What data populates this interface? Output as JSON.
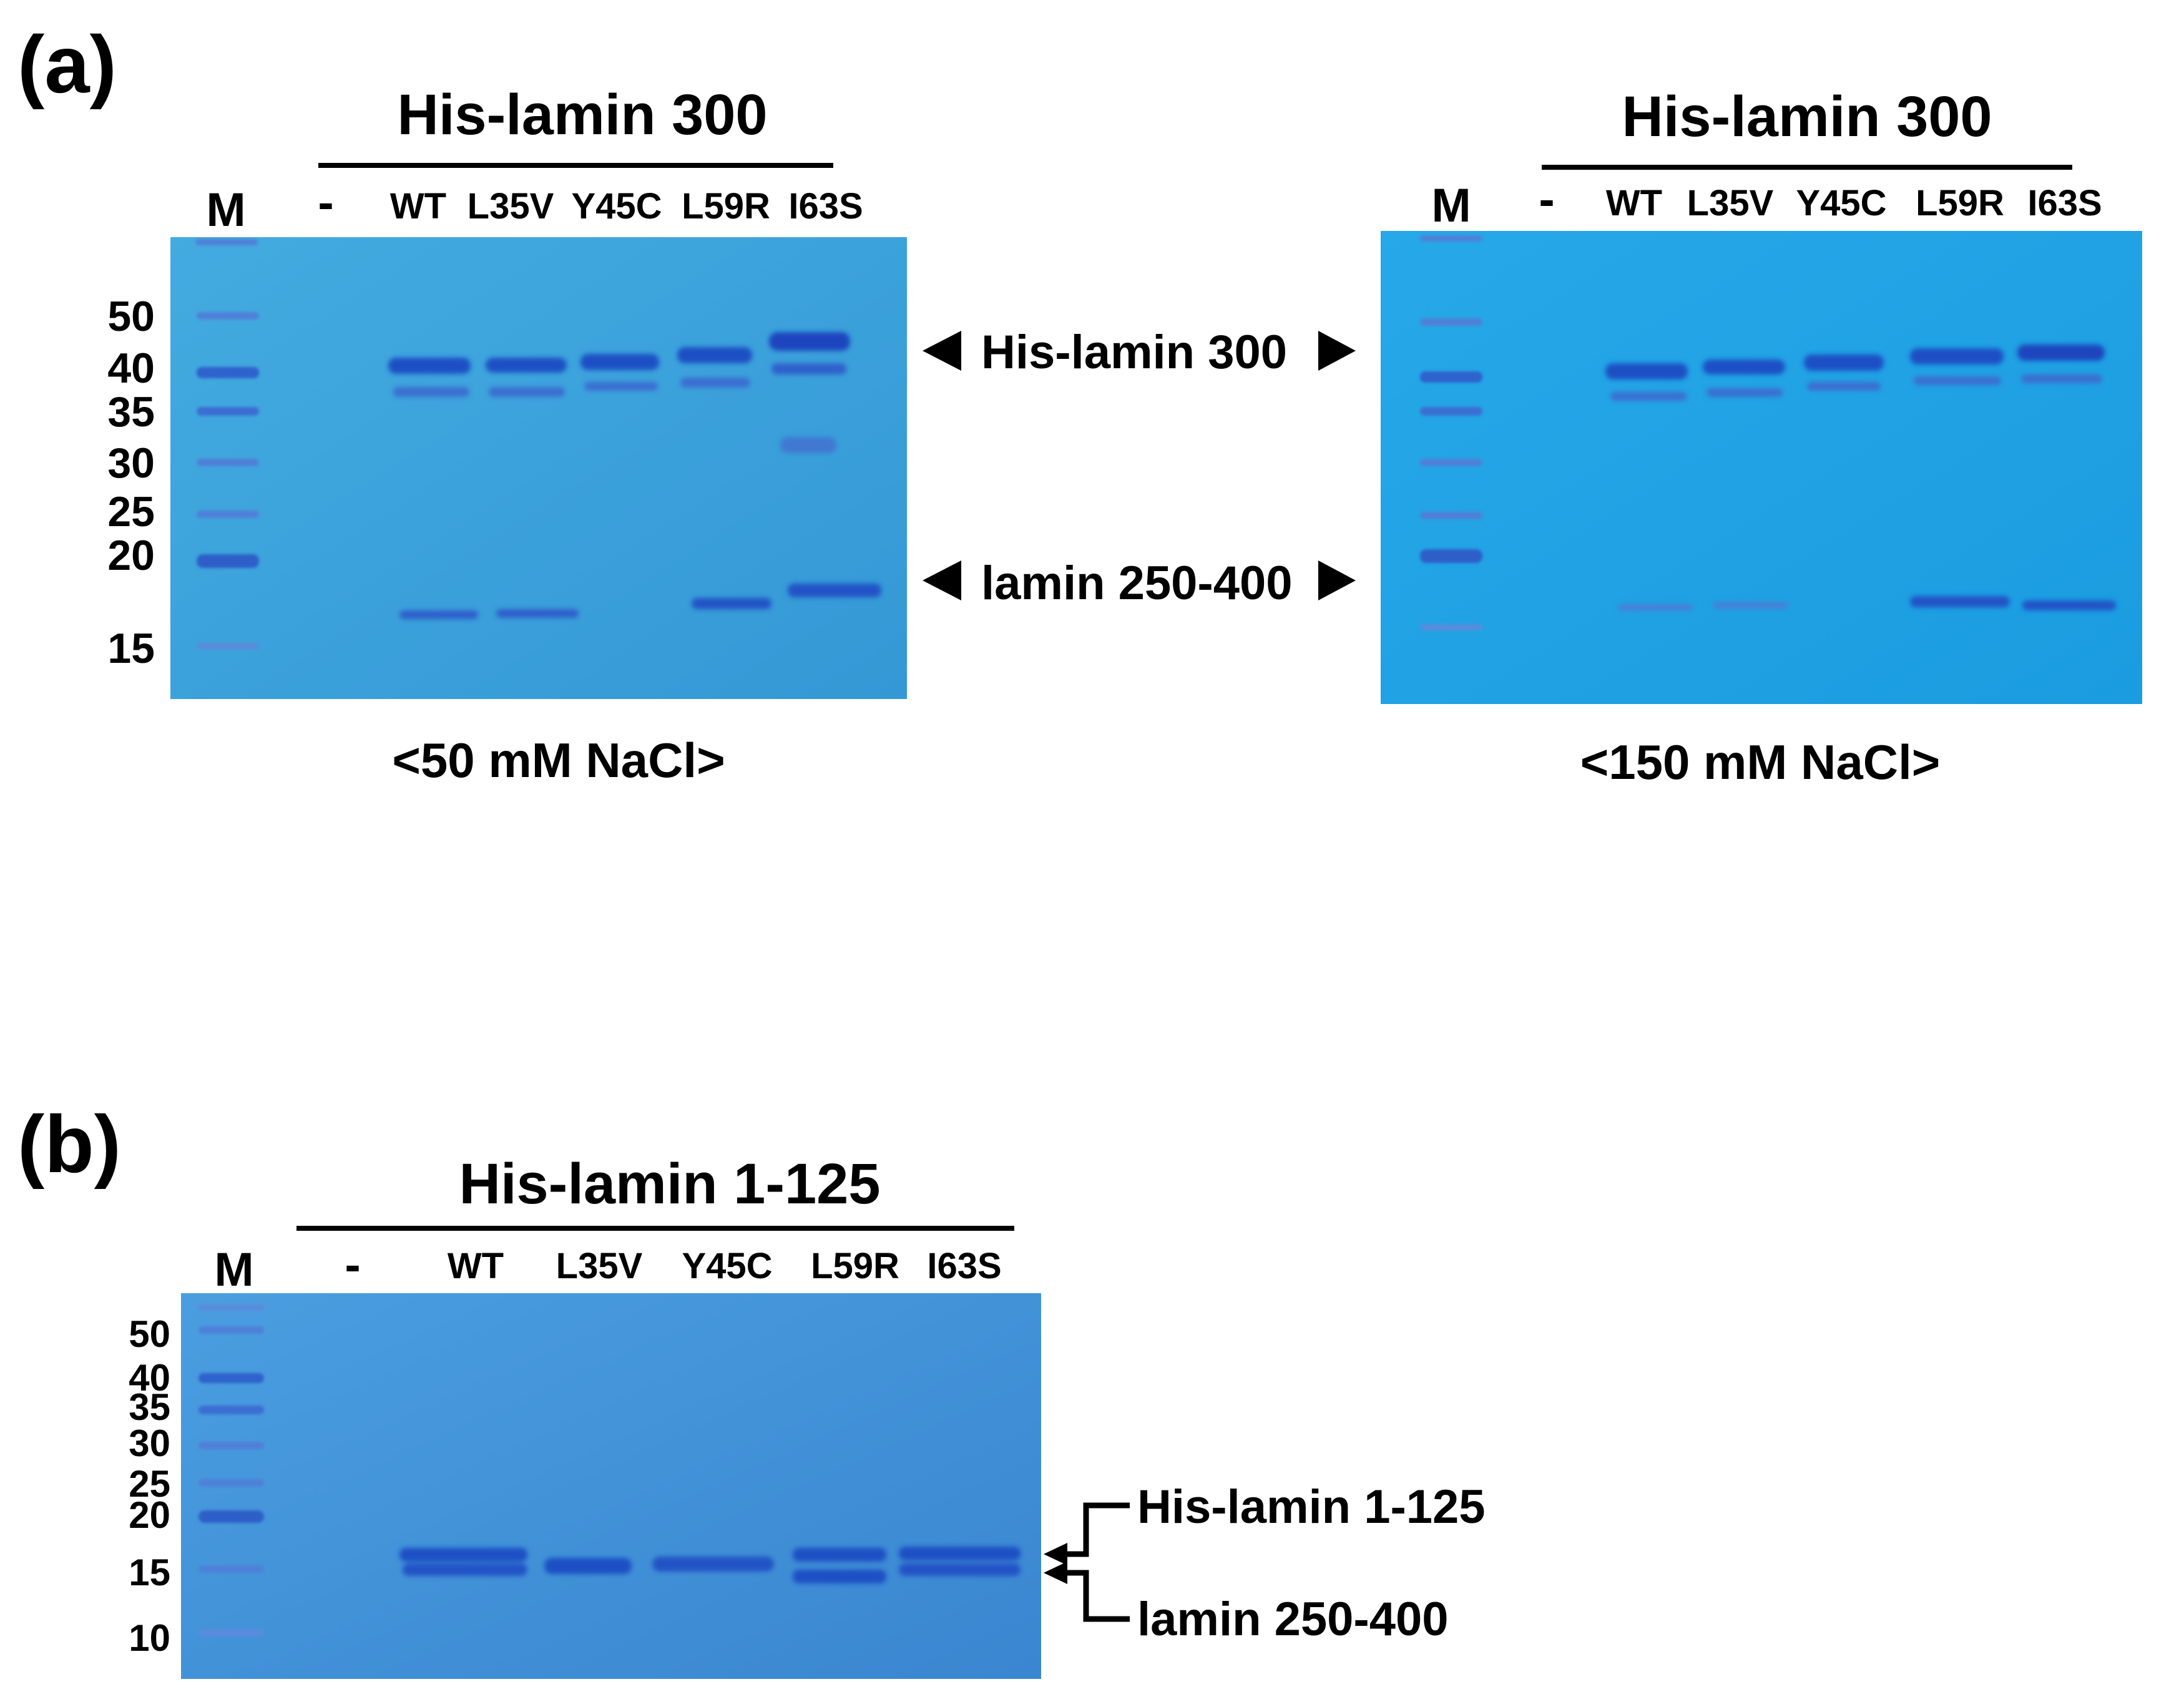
{
  "panel_a": {
    "label": "(a)",
    "gels": [
      {
        "title": "His-lamin 300",
        "marker_label": "M",
        "lanes": [
          "-",
          "WT",
          "L35V",
          "Y45C",
          "L59R",
          "I63S"
        ],
        "mw_labels": [
          "50",
          "40",
          "35",
          "30",
          "25",
          "20",
          "15"
        ],
        "condition": "<50 mM NaCl>"
      },
      {
        "title": "His-lamin 300",
        "marker_label": "M",
        "lanes": [
          "-",
          "WT",
          "L35V",
          "Y45C",
          "L59R",
          "I63S"
        ],
        "condition": "<150 mM NaCl>"
      }
    ],
    "band_annotations": [
      "His-lamin 300",
      "lamin 250-400"
    ]
  },
  "panel_b": {
    "label": "(b)",
    "title": "His-lamin 1-125",
    "marker_label": "M",
    "lanes": [
      "-",
      "WT",
      "L35V",
      "Y45C",
      "L59R",
      "I63S"
    ],
    "mw_labels": [
      "50",
      "40",
      "35",
      "30",
      "25",
      "20",
      "15",
      "10"
    ],
    "band_annotations": [
      "His-lamin 1-125",
      "lamin 250-400"
    ]
  },
  "colors": {
    "gel_a1": "#3aa3dc",
    "gel_a2": "#1ea2e4",
    "gel_b": "#3e92d6",
    "band": "#1d4fc4",
    "marker_band": "#2f62cc"
  }
}
